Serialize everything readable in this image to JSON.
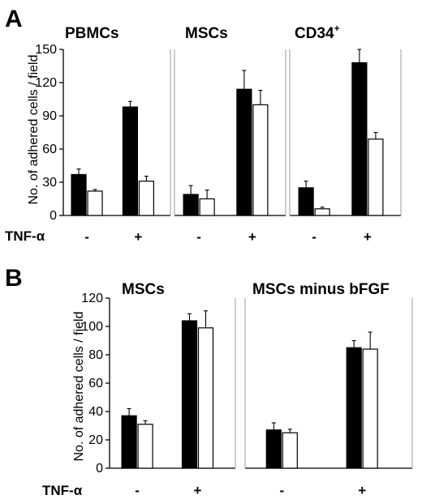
{
  "panels": {
    "A": {
      "letter": "A",
      "ylabel": "No. of adhered cells / field",
      "xlabel": "TNF-α",
      "yticks": [
        "0",
        "30",
        "60",
        "90",
        "120",
        "150"
      ]
    },
    "B": {
      "letter": "B",
      "ylabel": "No. of adhered cells / field",
      "xlabel": "TNF-α",
      "yticks": [
        "0",
        "20",
        "40",
        "60",
        "80",
        "100",
        "120"
      ]
    }
  },
  "colors": {
    "filled": "#000000",
    "open": "#ffffff",
    "frame": "#9a9a9a"
  },
  "chart_data": [
    {
      "panel": "A",
      "type": "bar",
      "title": "PBMCs",
      "ylim": [
        0,
        150
      ],
      "categories": [
        "-",
        "+"
      ],
      "series": [
        {
          "color": "#000000",
          "values": [
            37,
            98
          ],
          "errors": [
            5,
            5
          ]
        },
        {
          "color": "#ffffff",
          "values": [
            22,
            31
          ],
          "errors": [
            1.5,
            4.5
          ]
        }
      ]
    },
    {
      "panel": "A",
      "type": "bar",
      "title": "MSCs",
      "ylim": [
        0,
        150
      ],
      "categories": [
        "-",
        "+"
      ],
      "series": [
        {
          "color": "#000000",
          "values": [
            19,
            114
          ],
          "errors": [
            8,
            17
          ]
        },
        {
          "color": "#ffffff",
          "values": [
            15,
            100
          ],
          "errors": [
            8,
            13
          ]
        }
      ]
    },
    {
      "panel": "A",
      "type": "bar",
      "title": "CD34",
      "title_sup": "+",
      "ylim": [
        0,
        150
      ],
      "categories": [
        "-",
        "+"
      ],
      "series": [
        {
          "color": "#000000",
          "values": [
            25,
            138
          ],
          "errors": [
            6,
            12
          ]
        },
        {
          "color": "#ffffff",
          "values": [
            6,
            69
          ],
          "errors": [
            1.5,
            6
          ]
        }
      ]
    },
    {
      "panel": "B",
      "type": "bar",
      "title": "MSCs",
      "ylim": [
        0,
        120
      ],
      "categories": [
        "-",
        "+"
      ],
      "series": [
        {
          "color": "#000000",
          "values": [
            37,
            104
          ],
          "errors": [
            5,
            5
          ]
        },
        {
          "color": "#ffffff",
          "values": [
            31,
            99
          ],
          "errors": [
            2.5,
            12
          ]
        }
      ]
    },
    {
      "panel": "B",
      "type": "bar",
      "title": "MSCs minus bFGF",
      "ylim": [
        0,
        120
      ],
      "categories": [
        "-",
        "+"
      ],
      "series": [
        {
          "color": "#000000",
          "values": [
            27,
            85
          ],
          "errors": [
            5,
            5
          ]
        },
        {
          "color": "#ffffff",
          "values": [
            25,
            84
          ],
          "errors": [
            2.5,
            12
          ]
        }
      ]
    }
  ]
}
